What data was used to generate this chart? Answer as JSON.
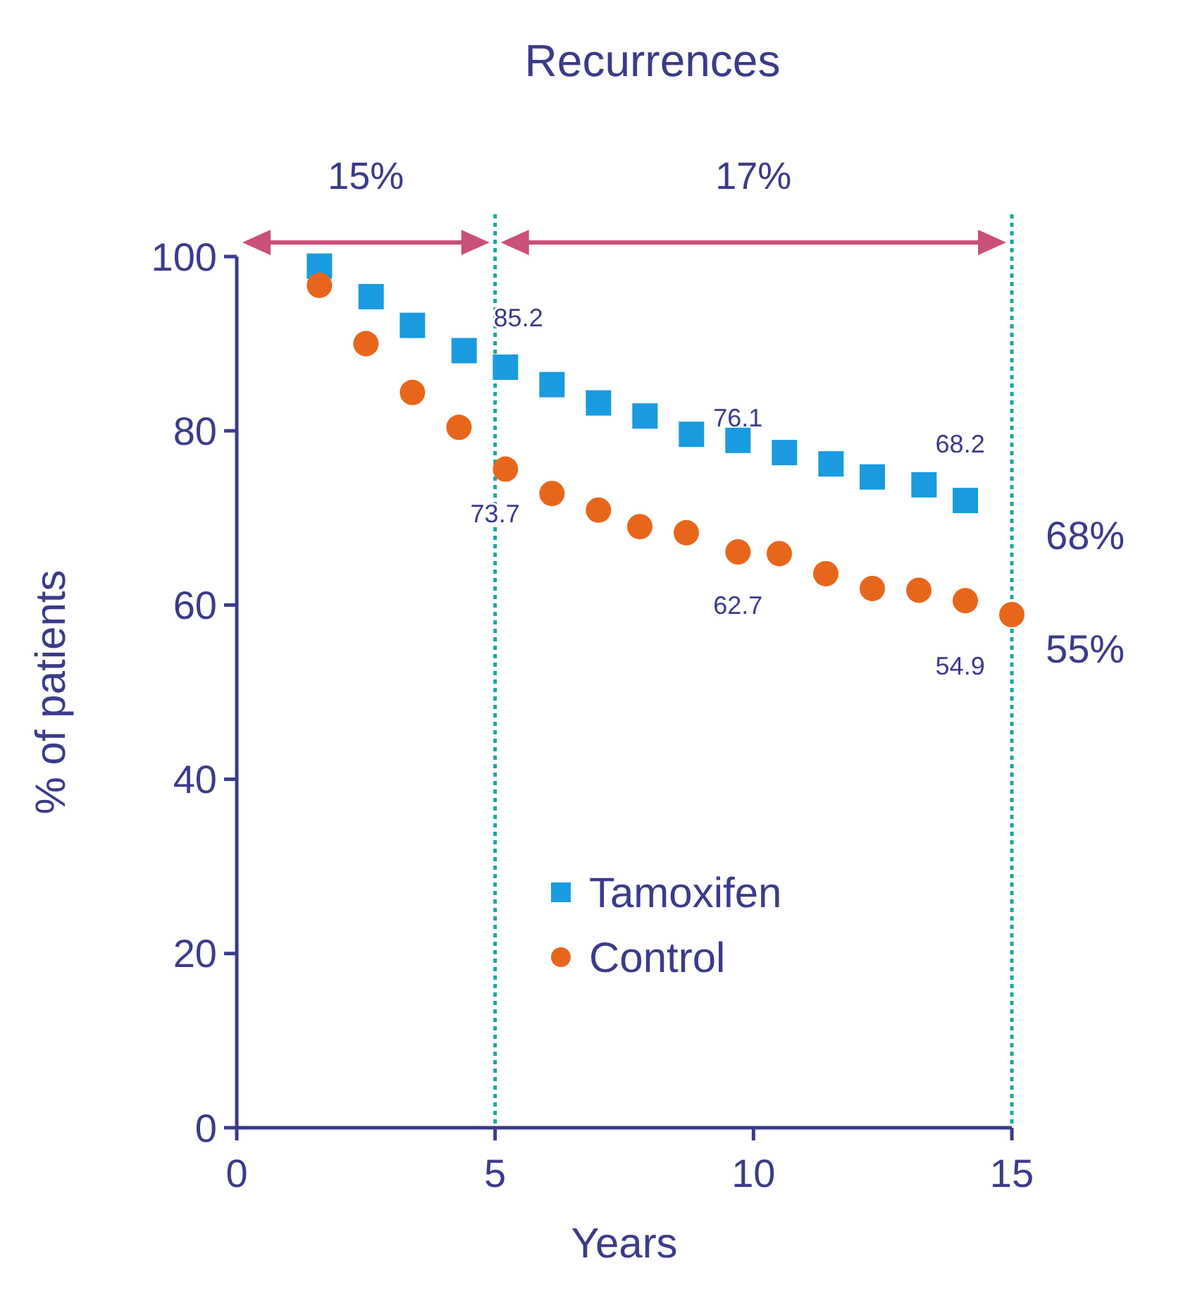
{
  "chart_data": {
    "type": "scatter",
    "title": "Recurrences",
    "xlabel": "Years",
    "ylabel": "% of patients",
    "xlim": [
      0,
      15
    ],
    "xticks": [
      0,
      5,
      10,
      15
    ],
    "ylim": [
      0,
      100
    ],
    "yticks": [
      0,
      20,
      40,
      60,
      80,
      100
    ],
    "grid": false,
    "legend": "bottom",
    "series": [
      {
        "name": "Tamoxifen",
        "color": "#1a9be0",
        "marker": "square",
        "x": [
          1.6,
          2.6,
          3.4,
          4.4,
          5.2,
          6.1,
          7.0,
          7.9,
          8.8,
          9.7,
          10.6,
          11.5,
          12.3,
          13.3,
          14.1
        ],
        "values": [
          98.9,
          95.4,
          92.1,
          89.2,
          87.3,
          85.3,
          83.2,
          81.7,
          79.6,
          78.9,
          77.5,
          76.2,
          74.7,
          73.8,
          72.0
        ]
      },
      {
        "name": "Control",
        "color": "#e8661c",
        "marker": "circle",
        "x": [
          1.6,
          2.5,
          3.4,
          4.3,
          5.2,
          6.1,
          7.0,
          7.8,
          8.7,
          9.7,
          10.5,
          11.4,
          12.3,
          13.2,
          14.1,
          15.0
        ],
        "values": [
          96.7,
          90.0,
          84.4,
          80.4,
          75.6,
          72.8,
          70.9,
          69.0,
          68.3,
          66.1,
          65.9,
          63.6,
          61.9,
          61.7,
          60.5,
          58.9
        ]
      }
    ],
    "ref_lines": [
      {
        "axis": "x",
        "value": 5,
        "color": "#1aa89a",
        "line_style": "dotted"
      },
      {
        "axis": "x",
        "value": 15,
        "color": "#1aa89a",
        "line_style": "dotted"
      }
    ],
    "annotations": [
      "15%",
      "17%",
      "85.2",
      "73.7",
      "76.1",
      "62.7",
      "68.2",
      "54.9",
      "68%",
      "55%"
    ]
  }
}
